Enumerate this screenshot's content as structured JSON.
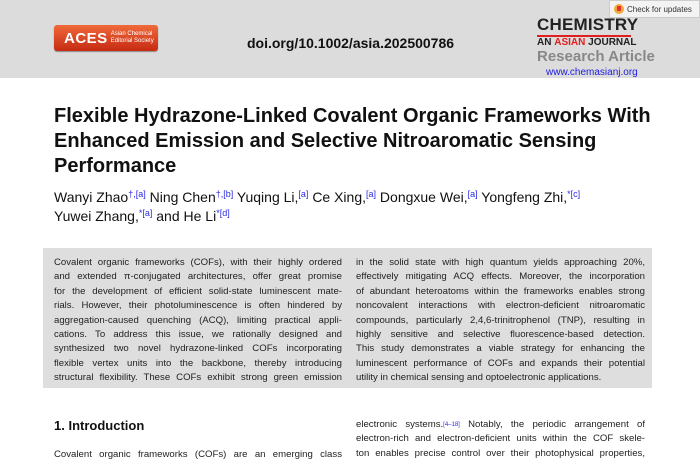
{
  "header": {
    "logo_main": "ACES",
    "logo_sub1": "Asian Chemical",
    "logo_sub2": "Editorial Society",
    "doi": "doi.org/10.1002/asia.202500786",
    "journal_line1": "CHEMISTRY",
    "journal_line2a": "AN ",
    "journal_line2b": "ASIAN",
    "journal_line2c": " JOURNAL",
    "article_type": "Research Article",
    "check_updates": "Check for updates",
    "url": "www.chemasianj.org",
    "accent": "#e02020"
  },
  "title": "Flexible Hydrazone-Linked Covalent Organic Frameworks With Enhanced Emission and Selective Nitroaromatic Sensing Performance",
  "authors": [
    {
      "name": "Wanyi Zhao",
      "mark": "†,[a]"
    },
    {
      "name": "Ning Chen",
      "mark": "†,[b]"
    },
    {
      "name": "Yuqing Li,",
      "mark": "[a]"
    },
    {
      "name": "Ce Xing,",
      "mark": "[a]"
    },
    {
      "name": "Dongxue Wei,",
      "mark": "[a]"
    },
    {
      "name": "Yongfeng Zhi,",
      "mark": "*[c]"
    },
    {
      "name": "Yuwei Zhang,",
      "mark": "*[a]"
    },
    {
      "name": "and He Li",
      "mark": "*[d]"
    }
  ],
  "abstract_left": [
    "Covalent organic frameworks (COFs), with their highly ordered",
    "and extended π-conjugated architectures, offer great promise",
    "for the development of efficient solid-state luminescent mate-",
    "rials. However, their photoluminescence is often hindered by",
    "aggregation-caused quenching (ACQ), limiting practical appli-",
    "cations. To address this issue, we rationally designed and",
    "synthesized two novel hydrazone-linked COFs incorporating",
    "flexible vertex units into the backbone, thereby introducing",
    "structural flexibility. These COFs exhibit strong green emission"
  ],
  "abstract_right": [
    "in the solid state with high quantum yields approaching 20%,",
    "effectively mitigating ACQ effects. Moreover, the incorporation",
    "of abundant heteroatoms within the frameworks enables strong",
    "noncovalent interactions with electron-deficient nitroaromatic",
    "compounds, particularly 2,4,6-trinitrophenol (TNP), resulting in",
    "highly sensitive and selective fluorescence-based detection.",
    "This study demonstrates a viable strategy for enhancing the",
    "luminescent performance of COFs and expands their potential",
    "utility in chemical sensing and optoelectronic applications."
  ],
  "intro": {
    "heading": "1. Introduction",
    "left": [
      "Covalent organic frameworks (COFs) are an emerging class"
    ],
    "right_first": "electronic systems.",
    "right_ref": "[4–18]",
    "right_first_rest": " Notably, the periodic arrangement of",
    "right": [
      "electron-rich and electron-deficient units within the COF skele-",
      "ton enables precise control over their photophysical properties,"
    ]
  }
}
